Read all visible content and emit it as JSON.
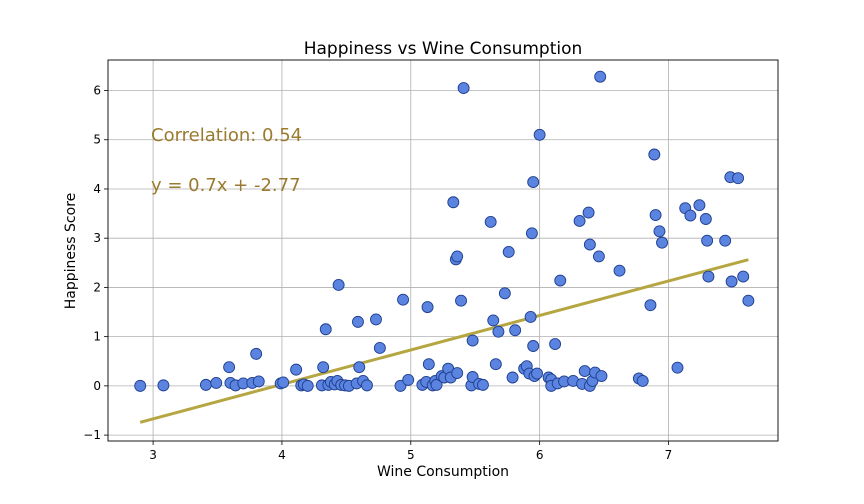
{
  "chart_data": {
    "type": "scatter",
    "title": "Happiness vs Wine Consumption",
    "xlabel": "Wine Consumption",
    "ylabel": "Happiness Score",
    "xlim": [
      2.65,
      7.85
    ],
    "ylim": [
      -1.12,
      6.62
    ],
    "x_ticks": [
      3,
      4,
      5,
      6,
      7
    ],
    "y_ticks": [
      -1,
      0,
      1,
      2,
      3,
      4,
      5,
      6
    ],
    "x_tick_labels": [
      "3",
      "4",
      "5",
      "6",
      "7"
    ],
    "y_tick_labels": [
      "−1",
      "0",
      "1",
      "2",
      "3",
      "4",
      "5",
      "6"
    ],
    "grid": true,
    "colors": {
      "marker_fill": "#5b84e0",
      "marker_edge": "#1f3f8f",
      "regression_line": "#b5a642",
      "annotation_text": "#9a7b2e"
    },
    "annotations": {
      "correlation": "Correlation:  0.54",
      "equation": "y = 0.7x + -2.77"
    },
    "regression": {
      "slope": 0.7,
      "intercept": -2.77,
      "x_range": [
        2.9,
        7.62
      ]
    },
    "points": [
      [
        2.9,
        0.0
      ],
      [
        3.08,
        0.01
      ],
      [
        3.41,
        0.02
      ],
      [
        3.49,
        0.06
      ],
      [
        3.59,
        0.38
      ],
      [
        3.6,
        0.06
      ],
      [
        3.64,
        0.01
      ],
      [
        3.7,
        0.05
      ],
      [
        3.77,
        0.06
      ],
      [
        3.8,
        0.65
      ],
      [
        3.82,
        0.09
      ],
      [
        3.99,
        0.05
      ],
      [
        4.01,
        0.07
      ],
      [
        4.11,
        0.33
      ],
      [
        4.15,
        0.01
      ],
      [
        4.17,
        0.03
      ],
      [
        4.2,
        0.0
      ],
      [
        4.31,
        0.01
      ],
      [
        4.32,
        0.38
      ],
      [
        4.34,
        1.15
      ],
      [
        4.36,
        0.02
      ],
      [
        4.38,
        0.08
      ],
      [
        4.41,
        0.03
      ],
      [
        4.43,
        0.1
      ],
      [
        4.44,
        2.05
      ],
      [
        4.46,
        0.02
      ],
      [
        4.49,
        0.01
      ],
      [
        4.52,
        0.0
      ],
      [
        4.58,
        0.05
      ],
      [
        4.59,
        1.3
      ],
      [
        4.6,
        0.38
      ],
      [
        4.63,
        0.1
      ],
      [
        4.66,
        0.01
      ],
      [
        4.73,
        1.35
      ],
      [
        4.76,
        0.77
      ],
      [
        4.92,
        0.0
      ],
      [
        4.94,
        1.75
      ],
      [
        4.98,
        0.12
      ],
      [
        5.09,
        0.02
      ],
      [
        5.12,
        0.08
      ],
      [
        5.13,
        1.6
      ],
      [
        5.14,
        0.44
      ],
      [
        5.17,
        0.01
      ],
      [
        5.19,
        0.1
      ],
      [
        5.2,
        0.02
      ],
      [
        5.24,
        0.2
      ],
      [
        5.26,
        0.17
      ],
      [
        5.29,
        0.35
      ],
      [
        5.31,
        0.17
      ],
      [
        5.33,
        3.73
      ],
      [
        5.35,
        2.57
      ],
      [
        5.36,
        2.63
      ],
      [
        5.36,
        0.26
      ],
      [
        5.39,
        1.73
      ],
      [
        5.41,
        6.05
      ],
      [
        5.47,
        0.01
      ],
      [
        5.48,
        0.92
      ],
      [
        5.48,
        0.18
      ],
      [
        5.53,
        0.04
      ],
      [
        5.56,
        0.02
      ],
      [
        5.62,
        3.33
      ],
      [
        5.64,
        1.33
      ],
      [
        5.66,
        0.44
      ],
      [
        5.68,
        1.1
      ],
      [
        5.73,
        1.88
      ],
      [
        5.76,
        2.72
      ],
      [
        5.79,
        0.17
      ],
      [
        5.81,
        1.13
      ],
      [
        5.88,
        0.35
      ],
      [
        5.9,
        0.4
      ],
      [
        5.92,
        0.25
      ],
      [
        5.93,
        1.4
      ],
      [
        5.94,
        3.1
      ],
      [
        5.95,
        4.14
      ],
      [
        5.95,
        0.81
      ],
      [
        5.96,
        0.2
      ],
      [
        5.98,
        0.25
      ],
      [
        6.0,
        5.1
      ],
      [
        6.07,
        0.17
      ],
      [
        6.09,
        0.13
      ],
      [
        6.09,
        0.0
      ],
      [
        6.12,
        0.85
      ],
      [
        6.14,
        0.05
      ],
      [
        6.16,
        2.14
      ],
      [
        6.19,
        0.09
      ],
      [
        6.26,
        0.1
      ],
      [
        6.31,
        3.35
      ],
      [
        6.33,
        0.04
      ],
      [
        6.35,
        0.3
      ],
      [
        6.38,
        3.52
      ],
      [
        6.39,
        0.0
      ],
      [
        6.39,
        2.87
      ],
      [
        6.41,
        0.1
      ],
      [
        6.43,
        0.27
      ],
      [
        6.46,
        2.63
      ],
      [
        6.47,
        6.28
      ],
      [
        6.48,
        0.2
      ],
      [
        6.62,
        2.34
      ],
      [
        6.77,
        0.15
      ],
      [
        6.8,
        0.1
      ],
      [
        6.86,
        1.64
      ],
      [
        6.89,
        4.7
      ],
      [
        6.9,
        3.47
      ],
      [
        6.93,
        3.14
      ],
      [
        6.95,
        2.91
      ],
      [
        7.07,
        0.37
      ],
      [
        7.13,
        3.61
      ],
      [
        7.17,
        3.46
      ],
      [
        7.24,
        3.67
      ],
      [
        7.29,
        3.39
      ],
      [
        7.3,
        2.95
      ],
      [
        7.31,
        2.22
      ],
      [
        7.44,
        2.95
      ],
      [
        7.48,
        4.24
      ],
      [
        7.49,
        2.12
      ],
      [
        7.54,
        4.22
      ],
      [
        7.58,
        2.22
      ],
      [
        7.62,
        1.73
      ]
    ]
  }
}
